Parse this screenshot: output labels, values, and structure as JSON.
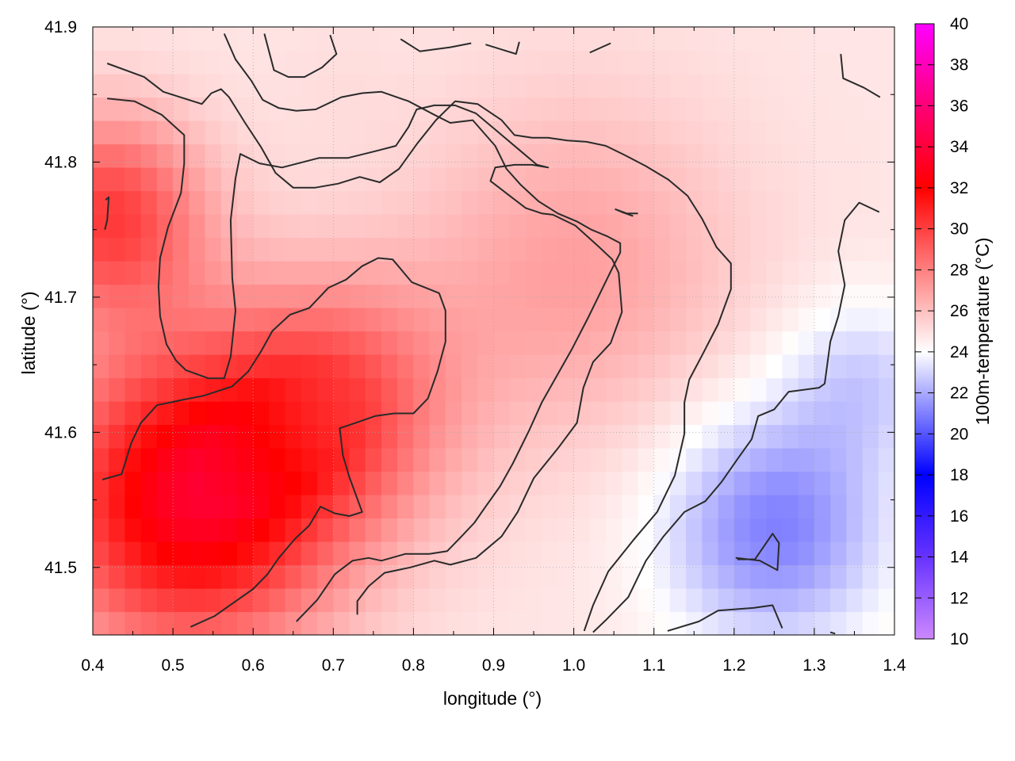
{
  "chart_data": {
    "type": "heatmap",
    "title": "",
    "xlabel": "longitude (°)",
    "ylabel": "latitude (°)",
    "colorbar_label": "100m-temperature (°C)",
    "xlim": [
      0.4,
      1.4
    ],
    "ylim": [
      41.45,
      41.9
    ],
    "x_ticks": [
      "0.4",
      "0.5",
      "0.6",
      "0.7",
      "0.8",
      "0.9",
      "1.0",
      "1.1",
      "1.2",
      "1.3",
      "1.4"
    ],
    "y_ticks": [
      "41.5",
      "41.6",
      "41.7",
      "41.8",
      "41.9"
    ],
    "colorbar_range": [
      10,
      40
    ],
    "colorbar_ticks": [
      "10",
      "12",
      "14",
      "16",
      "18",
      "20",
      "22",
      "24",
      "26",
      "28",
      "30",
      "32",
      "34",
      "36",
      "38",
      "40"
    ],
    "colorscale": [
      {
        "value": 10,
        "color": "#cc88ff"
      },
      {
        "value": 14,
        "color": "#6633ff"
      },
      {
        "value": 18,
        "color": "#0000ff"
      },
      {
        "value": 24,
        "color": "#ffffff"
      },
      {
        "value": 32,
        "color": "#ff0000"
      },
      {
        "value": 36,
        "color": "#ff0077"
      },
      {
        "value": 40,
        "color": "#ff00ff"
      }
    ],
    "grid": true,
    "field_hotspots": [
      {
        "lon": 0.52,
        "lat": 41.55,
        "temp": 33.0,
        "spread": 0.18
      },
      {
        "lon": 0.42,
        "lat": 41.76,
        "temp": 30.0,
        "spread": 0.12
      },
      {
        "lon": 0.7,
        "lat": 41.62,
        "temp": 29.0,
        "spread": 0.15
      },
      {
        "lon": 1.0,
        "lat": 41.72,
        "temp": 27.0,
        "spread": 0.2
      },
      {
        "lon": 0.7,
        "lat": 41.86,
        "temp": 25.0,
        "spread": 0.08
      },
      {
        "lon": 1.25,
        "lat": 41.53,
        "temp": 21.0,
        "spread": 0.14
      },
      {
        "lon": 1.36,
        "lat": 41.64,
        "temp": 23.0,
        "spread": 0.1
      }
    ],
    "contours": [
      [
        [
          0.418,
          41.873
        ],
        [
          0.464,
          41.863
        ],
        [
          0.488,
          41.852
        ],
        [
          0.536,
          41.843
        ],
        [
          0.548,
          41.851
        ],
        [
          0.56,
          41.854
        ],
        [
          0.57,
          41.848
        ],
        [
          0.59,
          41.829
        ],
        [
          0.61,
          41.811
        ],
        [
          0.628,
          41.792
        ],
        [
          0.65,
          41.781
        ],
        [
          0.677,
          41.781
        ],
        [
          0.706,
          41.784
        ],
        [
          0.733,
          41.789
        ],
        [
          0.758,
          41.785
        ],
        [
          0.782,
          41.795
        ],
        [
          0.805,
          41.814
        ],
        [
          0.828,
          41.831
        ],
        [
          0.852,
          41.845
        ],
        [
          0.88,
          41.843
        ],
        [
          0.91,
          41.831
        ],
        [
          0.926,
          41.82
        ],
        [
          0.948,
          41.818
        ],
        [
          0.968,
          41.818
        ],
        [
          0.992,
          41.816
        ],
        [
          1.016,
          41.815
        ],
        [
          1.04,
          41.812
        ],
        [
          1.064,
          41.805
        ],
        [
          1.09,
          41.797
        ],
        [
          1.118,
          41.787
        ],
        [
          1.142,
          41.775
        ],
        [
          1.16,
          41.758
        ],
        [
          1.178,
          41.737
        ],
        [
          1.196,
          41.725
        ],
        [
          1.196,
          41.706
        ],
        [
          1.18,
          41.68
        ],
        [
          1.16,
          41.657
        ],
        [
          1.144,
          41.639
        ],
        [
          1.138,
          41.622
        ],
        [
          1.138,
          41.599
        ],
        [
          1.126,
          41.568
        ],
        [
          1.104,
          41.541
        ],
        [
          1.074,
          41.52
        ],
        [
          1.043,
          41.497
        ],
        [
          1.024,
          41.472
        ],
        [
          1.013,
          41.453
        ]
      ],
      [
        [
          0.418,
          41.847
        ],
        [
          0.452,
          41.845
        ],
        [
          0.486,
          41.835
        ],
        [
          0.514,
          41.82
        ],
        [
          0.514,
          41.799
        ],
        [
          0.51,
          41.777
        ],
        [
          0.494,
          41.752
        ],
        [
          0.484,
          41.729
        ],
        [
          0.482,
          41.708
        ],
        [
          0.484,
          41.686
        ],
        [
          0.492,
          41.665
        ],
        [
          0.504,
          41.653
        ],
        [
          0.516,
          41.646
        ],
        [
          0.544,
          41.64
        ],
        [
          0.564,
          41.64
        ],
        [
          0.572,
          41.656
        ],
        [
          0.578,
          41.69
        ],
        [
          0.574,
          41.714
        ],
        [
          0.572,
          41.757
        ],
        [
          0.578,
          41.788
        ],
        [
          0.584,
          41.806
        ],
        [
          0.608,
          41.799
        ],
        [
          0.636,
          41.796
        ],
        [
          0.682,
          41.803
        ],
        [
          0.718,
          41.803
        ],
        [
          0.752,
          41.808
        ],
        [
          0.778,
          41.812
        ],
        [
          0.794,
          41.826
        ],
        [
          0.804,
          41.839
        ],
        [
          0.826,
          41.842
        ],
        [
          0.852,
          41.842
        ],
        [
          0.878,
          41.836
        ],
        [
          0.906,
          41.822
        ],
        [
          0.934,
          41.808
        ],
        [
          0.954,
          41.798
        ],
        [
          0.968,
          41.796
        ],
        [
          0.948,
          41.798
        ],
        [
          0.926,
          41.798
        ],
        [
          0.902,
          41.796
        ],
        [
          0.896,
          41.786
        ],
        [
          0.918,
          41.776
        ],
        [
          0.94,
          41.766
        ],
        [
          0.96,
          41.762
        ],
        [
          0.974,
          41.761
        ],
        [
          1.002,
          41.753
        ],
        [
          1.03,
          41.738
        ],
        [
          1.048,
          41.728
        ],
        [
          1.056,
          41.718
        ],
        [
          1.06,
          41.689
        ],
        [
          1.046,
          41.666
        ],
        [
          1.024,
          41.652
        ],
        [
          1.012,
          41.633
        ],
        [
          1.004,
          41.607
        ],
        [
          0.98,
          41.588
        ],
        [
          0.95,
          41.566
        ],
        [
          0.93,
          41.541
        ],
        [
          0.91,
          41.523
        ],
        [
          0.878,
          41.507
        ],
        [
          0.846,
          41.502
        ],
        [
          0.826,
          41.505
        ],
        [
          0.796,
          41.5
        ],
        [
          0.764,
          41.496
        ],
        [
          0.744,
          41.486
        ],
        [
          0.73,
          41.475
        ],
        [
          0.73,
          41.465
        ]
      ],
      [
        [
          0.412,
          41.565
        ],
        [
          0.436,
          41.569
        ],
        [
          0.448,
          41.592
        ],
        [
          0.46,
          41.607
        ],
        [
          0.48,
          41.62
        ],
        [
          0.512,
          41.624
        ],
        [
          0.538,
          41.627
        ],
        [
          0.574,
          41.634
        ],
        [
          0.594,
          41.645
        ],
        [
          0.61,
          41.66
        ],
        [
          0.624,
          41.675
        ],
        [
          0.646,
          41.687
        ],
        [
          0.67,
          41.692
        ],
        [
          0.694,
          41.707
        ],
        [
          0.716,
          41.713
        ],
        [
          0.736,
          41.723
        ],
        [
          0.756,
          41.729
        ],
        [
          0.774,
          41.728
        ],
        [
          0.798,
          41.711
        ],
        [
          0.832,
          41.703
        ],
        [
          0.84,
          41.69
        ],
        [
          0.84,
          41.667
        ],
        [
          0.83,
          41.645
        ],
        [
          0.818,
          41.625
        ],
        [
          0.8,
          41.614
        ],
        [
          0.776,
          41.614
        ],
        [
          0.752,
          41.612
        ],
        [
          0.728,
          41.607
        ],
        [
          0.708,
          41.603
        ],
        [
          0.712,
          41.583
        ],
        [
          0.72,
          41.567
        ],
        [
          0.728,
          41.554
        ],
        [
          0.736,
          41.541
        ],
        [
          0.72,
          41.538
        ],
        [
          0.702,
          41.54
        ],
        [
          0.684,
          41.545
        ],
        [
          0.67,
          41.531
        ],
        [
          0.652,
          41.521
        ],
        [
          0.632,
          41.507
        ],
        [
          0.618,
          41.495
        ],
        [
          0.6,
          41.484
        ],
        [
          0.576,
          41.474
        ],
        [
          0.552,
          41.464
        ],
        [
          0.522,
          41.456
        ]
      ],
      [
        [
          0.654,
          41.46
        ],
        [
          0.68,
          41.476
        ],
        [
          0.702,
          41.495
        ],
        [
          0.724,
          41.505
        ],
        [
          0.744,
          41.507
        ],
        [
          0.76,
          41.505
        ],
        [
          0.79,
          41.51
        ],
        [
          0.82,
          41.51
        ],
        [
          0.842,
          41.512
        ],
        [
          0.86,
          41.523
        ],
        [
          0.876,
          41.533
        ],
        [
          0.89,
          41.545
        ],
        [
          0.908,
          41.56
        ],
        [
          0.924,
          41.577
        ],
        [
          0.944,
          41.601
        ],
        [
          0.96,
          41.622
        ],
        [
          0.978,
          41.641
        ],
        [
          0.998,
          41.662
        ],
        [
          1.018,
          41.685
        ],
        [
          1.046,
          41.719
        ],
        [
          1.058,
          41.733
        ],
        [
          1.058,
          41.74
        ],
        [
          1.042,
          41.745
        ],
        [
          1.022,
          41.75
        ],
        [
          1.004,
          41.756
        ],
        [
          0.98,
          41.762
        ],
        [
          0.956,
          41.771
        ],
        [
          0.934,
          41.783
        ],
        [
          0.916,
          41.795
        ],
        [
          0.902,
          41.812
        ],
        [
          0.874,
          41.831
        ],
        [
          0.846,
          41.829
        ],
        [
          0.826,
          41.835
        ],
        [
          0.794,
          41.845
        ],
        [
          0.76,
          41.852
        ],
        [
          0.736,
          41.851
        ],
        [
          0.71,
          41.848
        ],
        [
          0.678,
          41.839
        ],
        [
          0.654,
          41.838
        ],
        [
          0.632,
          41.84
        ],
        [
          0.612,
          41.846
        ],
        [
          0.598,
          41.86
        ],
        [
          0.578,
          41.876
        ],
        [
          0.564,
          41.895
        ]
      ],
      [
        [
          0.614,
          41.895
        ],
        [
          0.626,
          41.868
        ],
        [
          0.644,
          41.863
        ],
        [
          0.664,
          41.863
        ],
        [
          0.686,
          41.87
        ],
        [
          0.704,
          41.88
        ],
        [
          0.696,
          41.894
        ]
      ],
      [
        [
          0.784,
          41.891
        ],
        [
          0.808,
          41.882
        ],
        [
          0.846,
          41.885
        ],
        [
          0.872,
          41.888
        ]
      ],
      [
        [
          0.89,
          41.887
        ],
        [
          0.928,
          41.88
        ],
        [
          0.932,
          41.889
        ]
      ],
      [
        [
          1.02,
          41.881
        ],
        [
          1.046,
          41.888
        ]
      ],
      [
        [
          1.333,
          41.88
        ],
        [
          1.336,
          41.862
        ],
        [
          1.362,
          41.855
        ],
        [
          1.382,
          41.848
        ]
      ],
      [
        [
          1.074,
          41.76
        ],
        [
          1.06,
          41.763
        ],
        [
          1.052,
          41.765
        ],
        [
          1.066,
          41.762
        ],
        [
          1.08,
          41.762
        ]
      ],
      [
        [
          0.415,
          41.75
        ],
        [
          0.418,
          41.757
        ],
        [
          0.42,
          41.774
        ],
        [
          0.416,
          41.772
        ]
      ],
      [
        [
          1.117,
          41.453
        ],
        [
          1.156,
          41.46
        ],
        [
          1.18,
          41.468
        ],
        [
          1.224,
          41.47
        ],
        [
          1.248,
          41.472
        ],
        [
          1.26,
          41.455
        ]
      ],
      [
        [
          1.204,
          41.506
        ],
        [
          1.226,
          41.506
        ],
        [
          1.248,
          41.525
        ],
        [
          1.256,
          41.518
        ],
        [
          1.254,
          41.498
        ],
        [
          1.232,
          41.505
        ],
        [
          1.202,
          41.507
        ]
      ],
      [
        [
          1.326,
          41.451
        ],
        [
          1.32,
          41.452
        ]
      ],
      [
        [
          1.381,
          41.763
        ],
        [
          1.356,
          41.77
        ],
        [
          1.338,
          41.757
        ],
        [
          1.33,
          41.734
        ],
        [
          1.338,
          41.709
        ],
        [
          1.33,
          41.686
        ],
        [
          1.32,
          41.667
        ],
        [
          1.313,
          41.636
        ],
        [
          1.306,
          41.633
        ],
        [
          1.268,
          41.63
        ],
        [
          1.25,
          41.617
        ],
        [
          1.23,
          41.612
        ],
        [
          1.222,
          41.595
        ],
        [
          1.204,
          41.58
        ],
        [
          1.184,
          41.563
        ],
        [
          1.164,
          41.549
        ],
        [
          1.138,
          41.541
        ],
        [
          1.112,
          41.523
        ],
        [
          1.09,
          41.505
        ],
        [
          1.068,
          41.478
        ],
        [
          1.04,
          41.461
        ],
        [
          1.024,
          41.452
        ]
      ]
    ]
  }
}
